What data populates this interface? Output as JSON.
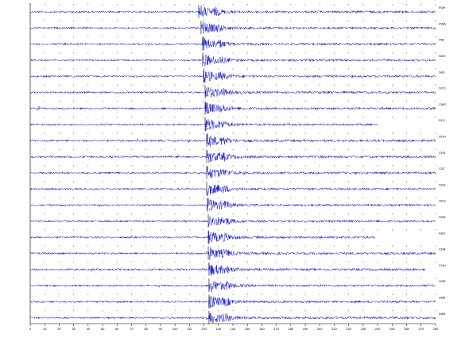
{
  "chart_data": {
    "type": "seismogram",
    "color": "#1a1acc",
    "xlim": [
      0,
      280
    ],
    "xticks": [
      0,
      10,
      20,
      30,
      40,
      50,
      60,
      70,
      80,
      90,
      100,
      110,
      120,
      130,
      140,
      150,
      160,
      170,
      180,
      190,
      200,
      210,
      220,
      230,
      240,
      250,
      260,
      270,
      280
    ],
    "traces": [
      {
        "station": "PDH",
        "onset": 116.4,
        "end": 280
      },
      {
        "station": "PWA",
        "onset": 118.0,
        "end": 280
      },
      {
        "station": "PB1",
        "onset": 119.1,
        "end": 280
      },
      {
        "station": "SDS",
        "onset": 119.1,
        "end": 280
      },
      {
        "station": "SKE",
        "onset": 119.7,
        "end": 280
      },
      {
        "station": "SYO",
        "onset": 120.8,
        "end": 280
      },
      {
        "station": "CMS",
        "onset": 120.8,
        "end": 280,
        "pick": "P"
      },
      {
        "station": "PLS",
        "onset": 120.8,
        "end": 240,
        "pick": "P"
      },
      {
        "station": "SOH",
        "onset": 121.9,
        "end": 280
      },
      {
        "station": "CHS",
        "onset": 121.9,
        "end": 280,
        "pick": "P"
      },
      {
        "station": "CST",
        "onset": 121.9,
        "end": 280
      },
      {
        "station": "SGS",
        "onset": 121.9,
        "end": 280
      },
      {
        "station": "GEO",
        "onset": 122.4,
        "end": 280,
        "pick": "P"
      },
      {
        "station": "SHN",
        "onset": 123.0,
        "end": 280
      },
      {
        "station": "ASD",
        "onset": 123.0,
        "end": 238
      },
      {
        "station": "CNR",
        "onset": 123.0,
        "end": 280
      },
      {
        "station": "CHH",
        "onset": 123.5,
        "end": 273
      },
      {
        "station": "GSR",
        "onset": 123.5,
        "end": 280
      },
      {
        "station": "SNB",
        "onset": 123.5,
        "end": 280,
        "pick": "P"
      },
      {
        "station": "DAR",
        "onset": 123.5,
        "end": 280
      }
    ]
  }
}
